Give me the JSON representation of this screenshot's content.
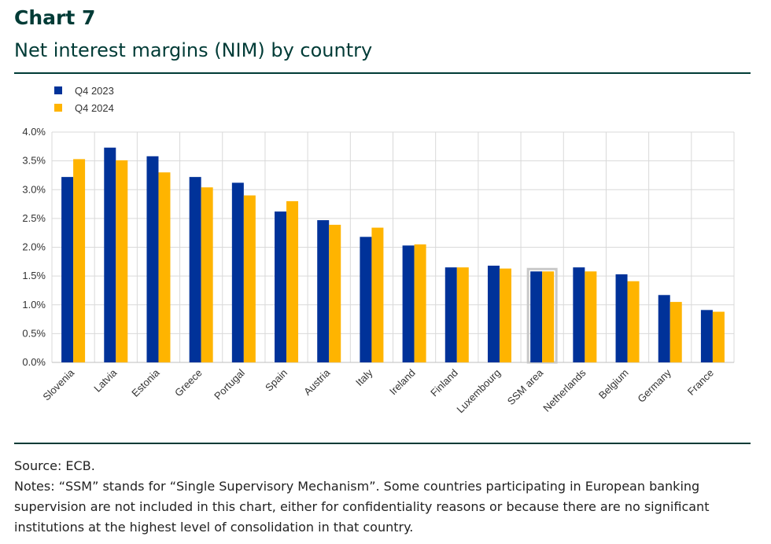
{
  "header": {
    "chart_number": "Chart 7",
    "title": "Net interest margins (NIM) by country"
  },
  "footer": {
    "source": "Source: ECB.",
    "notes": "Notes: “SSM” stands for “Single Supervisory Mechanism”. Some countries participating in European banking supervision are not included in this chart, either for confidentiality reasons or because there are no significant institutions at the highest level of consolidation in that country."
  },
  "chart_data": {
    "type": "bar",
    "title": "Net interest margins (NIM) by country",
    "xlabel": "",
    "ylabel": "",
    "ylim": [
      0,
      4.0
    ],
    "yticks": [
      "0.0%",
      "0.5%",
      "1.0%",
      "1.5%",
      "2.0%",
      "2.5%",
      "3.0%",
      "3.5%",
      "4.0%"
    ],
    "grid": true,
    "legend_position": "top-left",
    "highlighted_category": "SSM area",
    "categories": [
      "Slovenia",
      "Latvia",
      "Estonia",
      "Greece",
      "Portugal",
      "Spain",
      "Austria",
      "Italy",
      "Ireland",
      "Finland",
      "Luxembourg",
      "SSM area",
      "Netherlands",
      "Belgium",
      "Germany",
      "France"
    ],
    "series": [
      {
        "name": "Q4 2023",
        "color": "#003299",
        "values": [
          3.22,
          3.73,
          3.58,
          3.22,
          3.12,
          2.62,
          2.47,
          2.18,
          2.03,
          1.65,
          1.68,
          1.58,
          1.65,
          1.53,
          1.17,
          0.91
        ]
      },
      {
        "name": "Q4 2024",
        "color": "#FFB400",
        "values": [
          3.53,
          3.51,
          3.3,
          3.04,
          2.9,
          2.8,
          2.39,
          2.34,
          2.05,
          1.65,
          1.63,
          1.58,
          1.58,
          1.41,
          1.05,
          0.88
        ]
      }
    ]
  }
}
